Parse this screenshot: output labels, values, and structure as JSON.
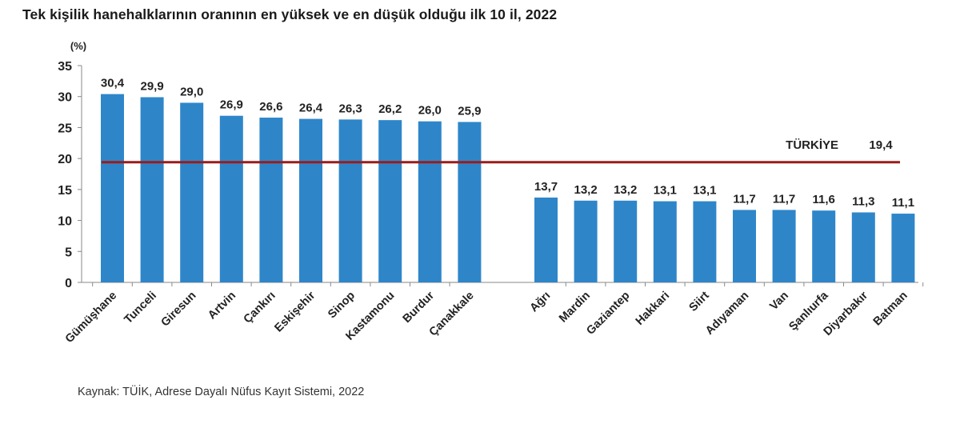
{
  "title": "Tek kişilik hanehalklarının oranının en yüksek ve en düşük olduğu ilk 10 il, 2022",
  "source": "Kaynak: TÜİK, Adrese Dayalı Nüfus Kayıt Sistemi, 2022",
  "colors": {
    "bar": "#2E86C9",
    "reference_line": "#9B1B1B",
    "axis": "#888888"
  },
  "chart_data": {
    "type": "bar",
    "ylabel": "(%)",
    "ylim": [
      0,
      35
    ],
    "yticks": [
      "0",
      "5",
      "10",
      "15",
      "20",
      "25",
      "30",
      "35"
    ],
    "grid": false,
    "categories": [
      "Gümüşhane",
      "Tunceli",
      "Giresun",
      "Artvin",
      "Çankırı",
      "Eskişehir",
      "Sinop",
      "Kastamonu",
      "Burdur",
      "Çanakkale",
      "Ağrı",
      "Mardin",
      "Gaziantep",
      "Hakkari",
      "Siirt",
      "Adıyaman",
      "Van",
      "Şanlıurfa",
      "Diyarbakır",
      "Batman"
    ],
    "values": [
      30.4,
      29.9,
      29.0,
      26.9,
      26.6,
      26.4,
      26.3,
      26.2,
      26.0,
      25.9,
      13.7,
      13.2,
      13.2,
      13.1,
      13.1,
      11.7,
      11.7,
      11.6,
      11.3,
      11.1
    ],
    "value_labels": [
      "30,4",
      "29,9",
      "29,0",
      "26,9",
      "26,6",
      "26,4",
      "26,3",
      "26,2",
      "26,0",
      "25,9",
      "13,7",
      "13,2",
      "13,2",
      "13,1",
      "13,1",
      "11,7",
      "11,7",
      "11,6",
      "11,3",
      "11,1"
    ],
    "reference_line": {
      "name": "TÜRKİYE",
      "value": 19.4,
      "label": "19,4"
    }
  }
}
